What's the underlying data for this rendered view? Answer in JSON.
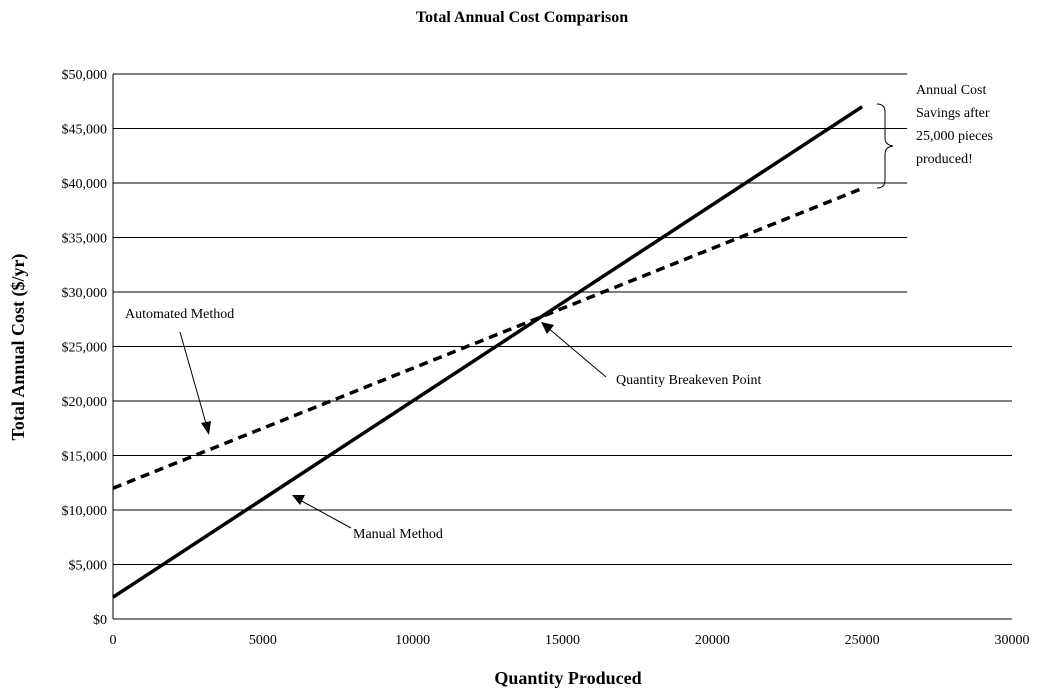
{
  "chart_data": {
    "type": "line",
    "title": "Total Annual Cost Comparison",
    "xlabel": "Quantity Produced",
    "ylabel": "Total Annual Cost ($/yr)",
    "xlim": [
      0,
      30000
    ],
    "ylim": [
      0,
      50000
    ],
    "x_ticks": [
      "0",
      "5000",
      "10000",
      "15000",
      "20000",
      "25000",
      "30000"
    ],
    "y_ticks": [
      "$0",
      "$5,000",
      "$10,000",
      "$15,000",
      "$20,000",
      "$25,000",
      "$30,000",
      "$35,000",
      "$40,000",
      "$45,000",
      "$50,000"
    ],
    "grid": "horizontal",
    "series": [
      {
        "name": "Manual Method",
        "style": "solid",
        "x": [
          0,
          25000
        ],
        "y": [
          2000,
          47000
        ]
      },
      {
        "name": "Automated Method",
        "style": "dashed",
        "x": [
          0,
          25000
        ],
        "y": [
          12000,
          39500
        ]
      }
    ],
    "annotations": {
      "automated": "Automated Method",
      "manual": "Manual Method",
      "breakeven": "Quantity Breakeven Point",
      "savings_lines": [
        "Annual Cost",
        "Savings after",
        "25,000 pieces",
        "produced!"
      ]
    },
    "colors": {
      "line": "#000000",
      "background": "#ffffff"
    }
  }
}
